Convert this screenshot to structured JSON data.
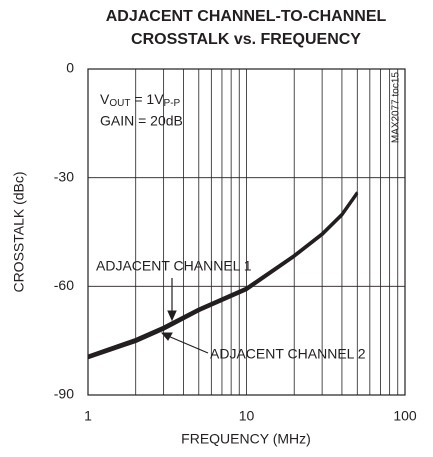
{
  "chart_data": {
    "type": "line",
    "title": [
      "ADJACENT CHANNEL-TO-CHANNEL",
      "CROSSTALK vs. FREQUENCY"
    ],
    "x_label": "FREQUENCY (MHz)",
    "y_label": "CROSSTALK (dBc)",
    "vout_label": {
      "base": "V",
      "sub": "OUT",
      "mid": " = 1V",
      "sub2": "P-P"
    },
    "annotations": [
      "GAIN = 20dB",
      "MAX2077 toc15"
    ],
    "x": [
      1,
      2,
      3,
      5,
      10,
      20,
      30,
      40,
      50
    ],
    "series": [
      {
        "name": "ADJACENT CHANNEL 1",
        "color": "#231f20",
        "values": [
          -79.2,
          -74.6,
          -71.2,
          -66.2,
          -60.4,
          -51.4,
          -45.4,
          -40,
          -34
        ]
      },
      {
        "name": "ADJACENT CHANNEL 2",
        "color": "#231f20",
        "values": [
          -79.8,
          -75.3,
          -71.9,
          -66.8,
          -61,
          -51.8,
          -45.8,
          -40.4,
          -34.4
        ]
      }
    ],
    "xlog": true,
    "xlim": [
      1,
      100
    ],
    "xticks": [
      1,
      10,
      100
    ],
    "x_minor_ticks": [
      2,
      3,
      4,
      5,
      6,
      7,
      8,
      9,
      20,
      30,
      40,
      50,
      60,
      70,
      80,
      90
    ],
    "ylim": [
      -90,
      0
    ],
    "yticks": [
      0,
      -30,
      -60,
      -90
    ],
    "grid": true
  }
}
